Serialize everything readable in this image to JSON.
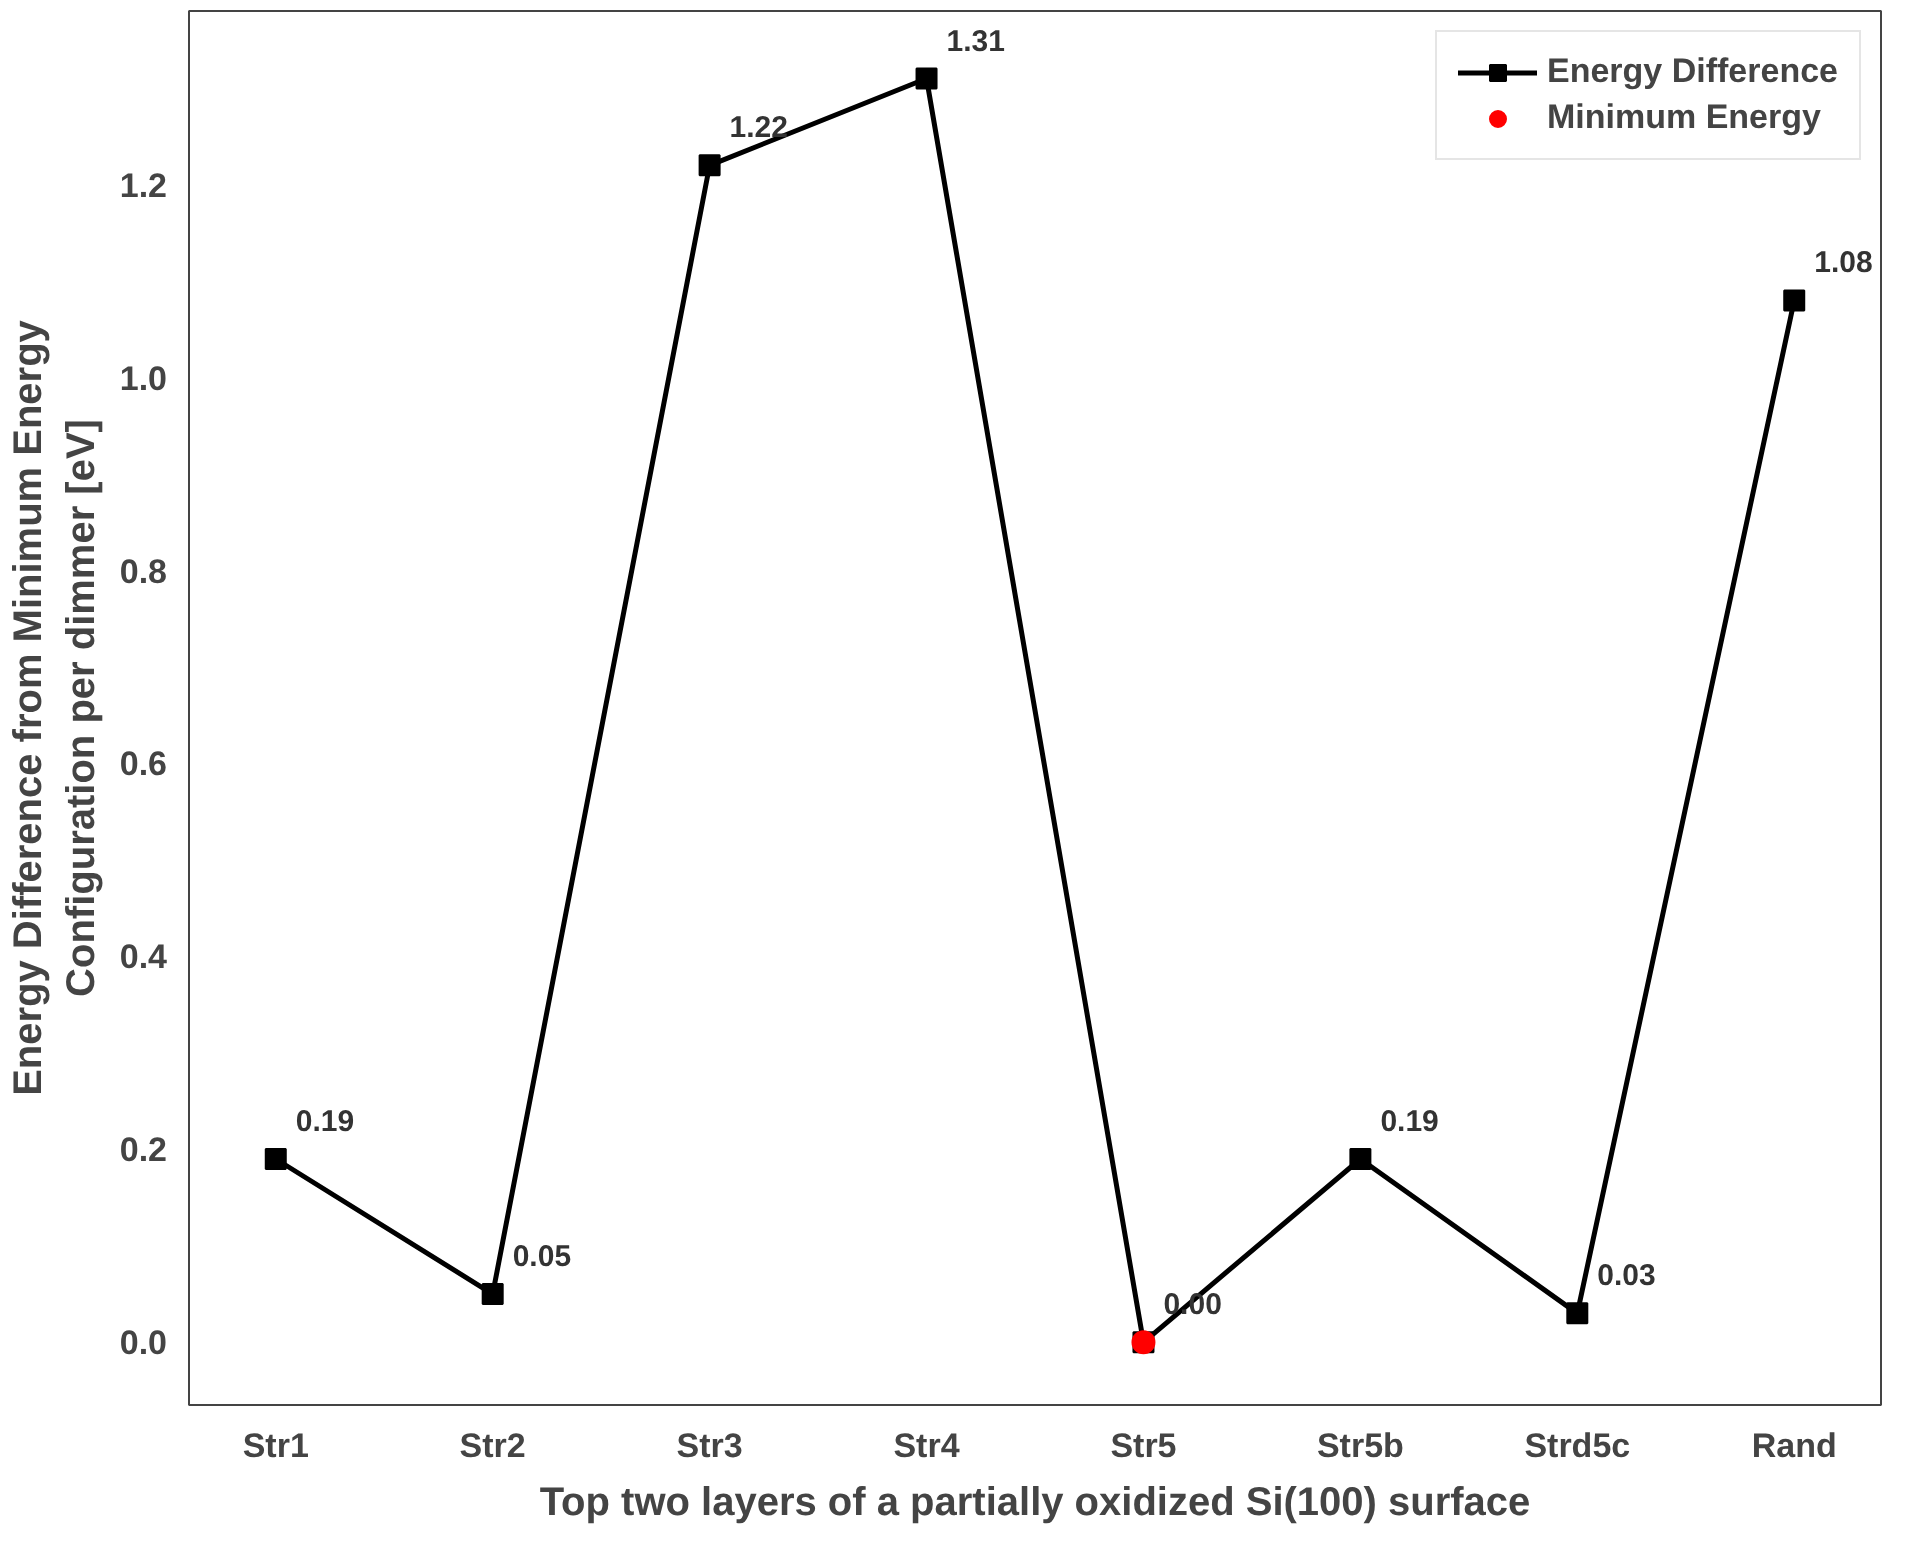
{
  "chart_data": {
    "type": "line",
    "xlabel": "Top two layers of a partially oxidized Si(100) surface",
    "ylabel": "Energy Difference from Minimum Energy\nConfiguration per dimmer [eV]",
    "categories": [
      "Str1",
      "Str2",
      "Str3",
      "Str4",
      "Str5",
      "Str5b",
      "Strd5c",
      "Rand"
    ],
    "series": [
      {
        "name": "Energy Difference",
        "color": "#000000",
        "marker": "square",
        "line_style": "solid",
        "values": [
          0.19,
          0.05,
          1.22,
          1.31,
          0.0,
          0.19,
          0.03,
          1.08
        ],
        "value_labels": [
          "0.19",
          "0.05",
          "1.22",
          "1.31",
          "0.00",
          "0.19",
          "0.03",
          "1.08"
        ]
      },
      {
        "name": "Minimum Energy",
        "type": "scatter",
        "color": "#ff0000",
        "marker": "circle",
        "x": [
          "Str5"
        ],
        "values": [
          0.0
        ]
      }
    ],
    "ylim": [
      -0.065,
      1.38
    ],
    "yticks": [
      {
        "value": 0,
        "label": "0.0"
      },
      {
        "value": 0.2,
        "label": "0.2"
      },
      {
        "value": 0.4,
        "label": "0.4"
      },
      {
        "value": 0.6,
        "label": "0.6"
      },
      {
        "value": 0.8,
        "label": "0.8"
      },
      {
        "value": 1,
        "label": "1.0"
      },
      {
        "value": 1.2,
        "label": "1.2"
      }
    ],
    "grid": false,
    "legend": "top right"
  }
}
